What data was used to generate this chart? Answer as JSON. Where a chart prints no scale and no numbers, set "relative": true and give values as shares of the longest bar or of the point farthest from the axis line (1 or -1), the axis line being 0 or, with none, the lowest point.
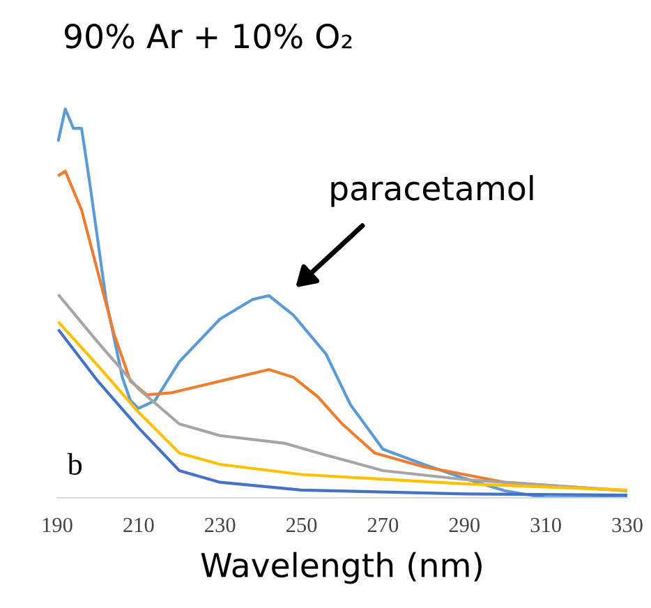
{
  "chart_data": {
    "type": "line",
    "title": "90% Ar + 10% O₂",
    "xlabel": "Wavelength (nm)",
    "relative": true,
    "xlim": [
      190,
      330
    ],
    "xticks": [
      190,
      210,
      230,
      250,
      270,
      290,
      310,
      330
    ],
    "grid": false,
    "legend": false,
    "annotations": [
      "paracetamol",
      "b"
    ],
    "series": [
      {
        "color": "#5b9bd5",
        "x": [
          190.3,
          192,
          194,
          196,
          198,
          202,
          206,
          208,
          210,
          214,
          220,
          230,
          238,
          242,
          248,
          256,
          262,
          270,
          280,
          290,
          300,
          310,
          330
        ],
        "values": [
          0.92,
          1.0,
          0.95,
          0.95,
          0.81,
          0.51,
          0.31,
          0.25,
          0.23,
          0.25,
          0.35,
          0.46,
          0.51,
          0.52,
          0.47,
          0.37,
          0.24,
          0.125,
          0.086,
          0.05,
          0.018,
          0,
          0
        ]
      },
      {
        "color": "#ed7d31",
        "x": [
          190.5,
          192,
          196,
          200,
          204,
          208,
          212,
          218,
          226,
          234,
          242,
          248,
          254,
          260,
          268,
          280,
          290,
          300,
          330
        ],
        "values": [
          0.83,
          0.84,
          0.74,
          0.58,
          0.42,
          0.3,
          0.265,
          0.27,
          0.29,
          0.31,
          0.33,
          0.31,
          0.26,
          0.19,
          0.115,
          0.08,
          0.06,
          0.04,
          0.018
        ]
      },
      {
        "color": "#a5a5a5",
        "x": [
          190.5,
          200,
          210,
          220,
          230,
          246,
          256,
          270,
          290,
          330
        ],
        "values": [
          0.52,
          0.4,
          0.28,
          0.19,
          0.16,
          0.14,
          0.11,
          0.07,
          0.047,
          0.018
        ]
      },
      {
        "color": "#ffc000",
        "x": [
          190.5,
          200,
          210,
          220,
          230,
          250,
          290,
          330
        ],
        "values": [
          0.45,
          0.34,
          0.22,
          0.115,
          0.086,
          0.06,
          0.036,
          0.02
        ]
      },
      {
        "color": "#4472c4",
        "x": [
          190.5,
          200,
          210,
          220,
          230,
          250,
          290,
          330
        ],
        "values": [
          0.43,
          0.3,
          0.18,
          0.07,
          0.04,
          0.02,
          0.01,
          0.007
        ]
      }
    ]
  }
}
